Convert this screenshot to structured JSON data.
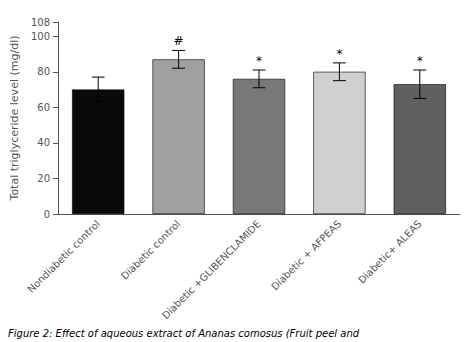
{
  "chart_data": {
    "type": "bar",
    "categories": [
      "Nondiabetic control",
      "Diabetic control",
      "Diabetic +GLIBENCLAMIDE",
      "Diabetic + AFPEAS",
      "Diabetic+ ALEAS"
    ],
    "values": [
      70,
      87,
      76,
      80,
      73
    ],
    "errors": [
      7,
      5,
      5,
      5,
      8
    ],
    "colors": [
      "#0a0a0a",
      "#a0a0a0",
      "#787878",
      "#d0d0d0",
      "#606060"
    ],
    "annotations": [
      null,
      "#",
      "*",
      "*",
      "*"
    ],
    "ylabel": "Total triglyceride level (mg/dl)",
    "ylim": [
      0,
      108
    ],
    "yticks": [
      0,
      20,
      40,
      60,
      80,
      100
    ],
    "grid": false,
    "caption": "Figure 2: Effect of aqueous extract of Ananas comosus (Fruit peel and"
  }
}
